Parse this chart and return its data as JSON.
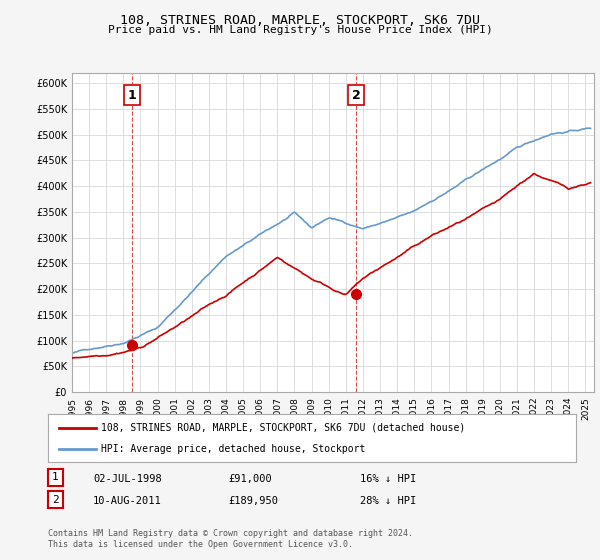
{
  "title1": "108, STRINES ROAD, MARPLE, STOCKPORT, SK6 7DU",
  "title2": "Price paid vs. HM Land Registry's House Price Index (HPI)",
  "ylabel_ticks": [
    "£0",
    "£50K",
    "£100K",
    "£150K",
    "£200K",
    "£250K",
    "£300K",
    "£350K",
    "£400K",
    "£450K",
    "£500K",
    "£550K",
    "£600K"
  ],
  "ylim": [
    0,
    620000
  ],
  "yticks": [
    0,
    50000,
    100000,
    150000,
    200000,
    250000,
    300000,
    350000,
    400000,
    450000,
    500000,
    550000,
    600000
  ],
  "xlim_start": 1995.0,
  "xlim_end": 2025.5,
  "sale1_x": 1998.5,
  "sale1_y": 91000,
  "sale1_label": "1",
  "sale2_x": 2011.6,
  "sale2_y": 189950,
  "sale2_label": "2",
  "vline1_x": 1998.5,
  "vline2_x": 2011.6,
  "red_line_color": "#cc0000",
  "blue_line_color": "#6699cc",
  "vline_color": "#cc0000",
  "grid_color": "#dddddd",
  "background_color": "#f5f5f5",
  "plot_bg_color": "#ffffff",
  "legend_label_red": "108, STRINES ROAD, MARPLE, STOCKPORT, SK6 7DU (detached house)",
  "legend_label_blue": "HPI: Average price, detached house, Stockport",
  "annotation1_date": "02-JUL-1998",
  "annotation1_price": "£91,000",
  "annotation1_hpi": "16% ↓ HPI",
  "annotation2_date": "10-AUG-2011",
  "annotation2_price": "£189,950",
  "annotation2_hpi": "28% ↓ HPI",
  "footer": "Contains HM Land Registry data © Crown copyright and database right 2024.\nThis data is licensed under the Open Government Licence v3.0."
}
